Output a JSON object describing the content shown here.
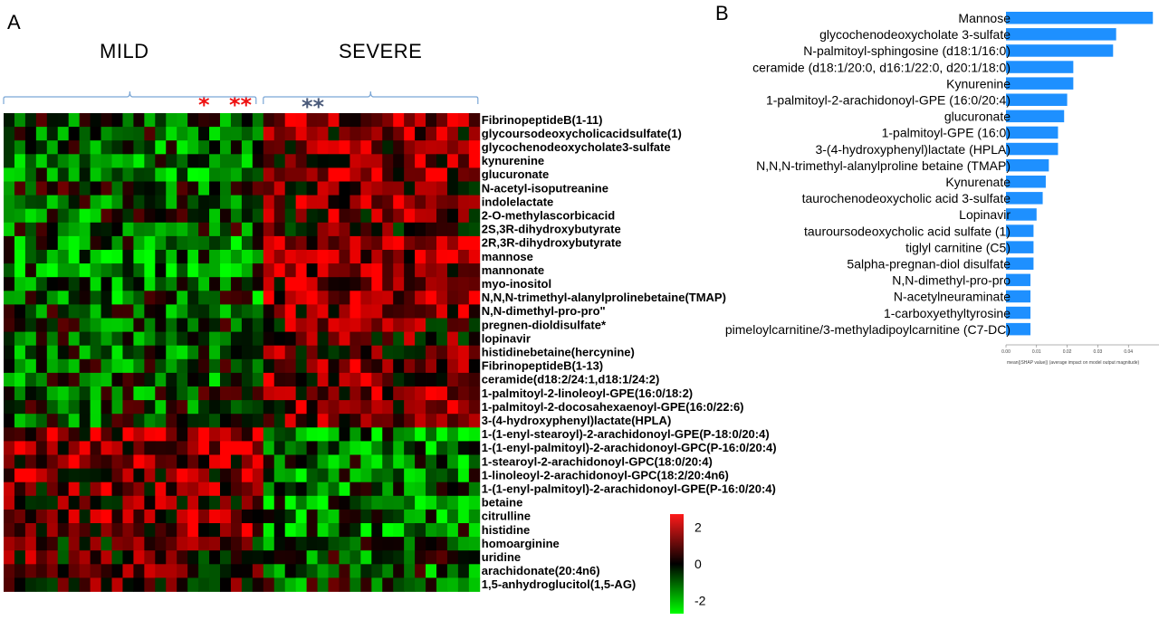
{
  "panel_a": {
    "letter": "A",
    "group_mild": "MILD",
    "group_severe": "SEVERE",
    "mild_stars": [
      {
        "text": "*",
        "color": "#ee1111"
      },
      {
        "text": "**",
        "color": "#ee1111"
      }
    ],
    "severe_stars": {
      "text": "**",
      "color": "#4a5a7a"
    },
    "colorbar": {
      "max_label": "2",
      "mid_label": "0",
      "min_label": "-2",
      "high_color": "#ff1a1a",
      "mid_color": "#000000",
      "low_color": "#00ff00"
    }
  },
  "panel_b": {
    "letter": "B",
    "bar_color": "#1e90ff",
    "xlabel": "mean(|SHAP value|) (average impact on model output magnitude)"
  },
  "chart_data": [
    {
      "type": "heatmap",
      "title": "",
      "columns_mild": 24,
      "columns_severe": 20,
      "value_range": [
        -2,
        2
      ],
      "rows": [
        "FibrinopeptideB(1-11)",
        "glycoursodeoxycholicacidsulfate(1)",
        "glycochenodeoxycholate3-sulfate",
        "kynurenine",
        "glucuronate",
        "N-acetyl-isoputreanine",
        "indolelactate",
        "2-O-methylascorbicacid",
        "2S,3R-dihydroxybutyrate",
        "2R,3R-dihydroxybutyrate",
        "mannose",
        "mannonate",
        "myo-inositol",
        "N,N,N-trimethyl-alanylprolinebetaine(TMAP)",
        "N,N-dimethyl-pro-pro\"",
        "pregnen-dioldisulfate*",
        "lopinavir",
        "histidinebetaine(hercynine)",
        "FibrinopeptideB(1-13)",
        "ceramide(d18:2/24:1,d18:1/24:2)",
        "1-palmitoyl-2-linoleoyl-GPE(16:0/18:2)",
        "1-palmitoyl-2-docosahexaenoyl-GPE(16:0/22:6)",
        "3-(4-hydroxyphenyl)lactate(HPLA)",
        "1-(1-enyl-stearoyl)-2-arachidonoyl-GPE(P-18:0/20:4)",
        "1-(1-enyl-palmitoyl)-2-arachidonoyl-GPC(P-16:0/20:4)",
        "1-stearoyl-2-arachidonoyl-GPC(18:0/20:4)",
        "1-linoleoyl-2-arachidonoyl-GPC(18:2/20:4n6)",
        "1-(1-enyl-palmitoyl)-2-arachidonoyl-GPE(P-16:0/20:4)",
        "betaine",
        "citrulline",
        "histidine",
        "homoarginine",
        "uridine",
        "arachidonate(20:4n6)",
        "1,5-anhydroglucitol(1,5-AG)"
      ],
      "row_bias_mild": [
        -0.6,
        -0.5,
        -0.8,
        -0.9,
        -1.0,
        -0.4,
        -0.5,
        -0.6,
        -0.4,
        -0.8,
        -1.0,
        -0.9,
        -0.8,
        -0.7,
        -0.6,
        -0.5,
        -0.4,
        -0.6,
        -0.5,
        -0.6,
        -0.5,
        -0.5,
        -0.4,
        1.1,
        1.0,
        0.9,
        0.9,
        0.8,
        0.8,
        0.9,
        0.8,
        0.5,
        0.5,
        0.6,
        0.3
      ],
      "row_bias_severe": [
        1.0,
        0.9,
        1.0,
        0.9,
        1.1,
        0.6,
        0.8,
        0.7,
        0.6,
        1.0,
        1.2,
        1.1,
        1.0,
        1.0,
        0.9,
        0.7,
        0.6,
        0.8,
        0.8,
        0.9,
        0.9,
        0.9,
        0.7,
        -0.9,
        -0.9,
        -0.8,
        -0.8,
        -0.7,
        -0.9,
        -1.0,
        -0.9,
        -0.6,
        -0.6,
        -0.6,
        -0.4
      ]
    },
    {
      "type": "bar",
      "orientation": "horizontal",
      "categories": [
        "Mannose",
        "glycochenodeoxycholate 3-sulfate",
        "N-palmitoyl-sphingosine (d18:1/16:0)",
        "ceramide (d18:1/20:0, d16:1/22:0, d20:1/18:0)",
        "Kynurenine",
        "1-palmitoyl-2-arachidonoyl-GPE (16:0/20:4)",
        "glucuronate",
        "1-palmitoyl-GPE (16:0)",
        "3-(4-hydroxyphenyl)lactate (HPLA)",
        "N,N,N-trimethyl-alanylproline betaine (TMAP)",
        "Kynurenate",
        "taurochenodeoxycholic acid 3-sulfate",
        "Lopinavir",
        "tauroursodeoxycholic acid sulfate (1)",
        "tiglyl carnitine (C5)",
        "5alpha-pregnan-diol disulfate",
        "N,N-dimethyl-pro-pro",
        "N-acetylneuraminate",
        "1-carboxyethyltyrosine",
        "pimeloylcarnitine/3-methyladipoylcarnitine (C7-DC)"
      ],
      "values": [
        0.048,
        0.036,
        0.035,
        0.022,
        0.022,
        0.02,
        0.019,
        0.017,
        0.017,
        0.014,
        0.013,
        0.012,
        0.01,
        0.009,
        0.009,
        0.009,
        0.008,
        0.008,
        0.008,
        0.008
      ],
      "xticks": [
        "0.00",
        "0.01",
        "0.02",
        "0.03",
        "0.04"
      ],
      "xlim": [
        0,
        0.05
      ],
      "xlabel": "mean(|SHAP value|) (average impact on model output magnitude)"
    }
  ]
}
